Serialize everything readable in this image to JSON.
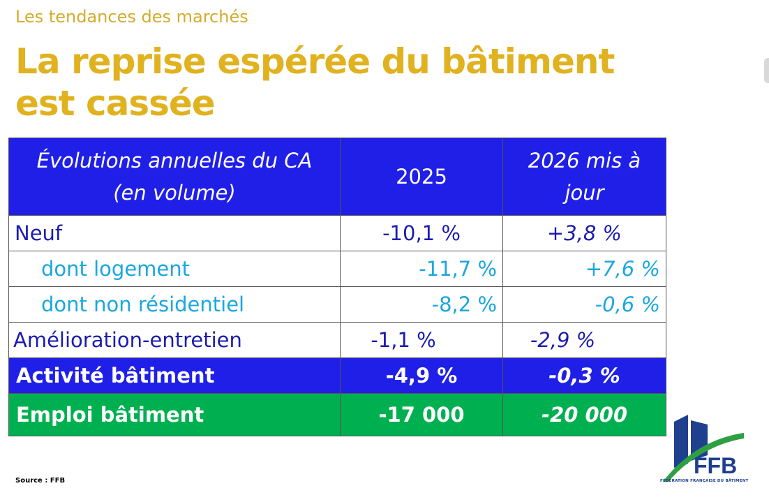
{
  "header": {
    "supertitle": "Les tendances des marchés",
    "title_line1": "La reprise espérée du bâtiment",
    "title_line2": "est cassée"
  },
  "table": {
    "header": {
      "label_line1": "Évolutions annuelles du CA",
      "label_line2": "(en volume)",
      "col_2025": "2025",
      "col_2026_line1": "2026 mis à",
      "col_2026_line2": "jour"
    },
    "rows": [
      {
        "label": "Neuf",
        "v2025": "-10,1 %",
        "v2026": "+3,8 %"
      },
      {
        "label": "dont logement",
        "v2025": "-11,7 %",
        "v2026": "+7,6 %"
      },
      {
        "label": "dont non résidentiel",
        "v2025": "-8,2 %",
        "v2026": "-0,6 %"
      },
      {
        "label": "Amélioration-entretien",
        "v2025": "-1,1 %",
        "v2026": "-2,9 %"
      },
      {
        "label": "Activité bâtiment",
        "v2025": "-4,9 %",
        "v2026": "-0,3 %"
      },
      {
        "label": "Emploi bâtiment",
        "v2025": "-17 000",
        "v2026": "-20 000"
      }
    ]
  },
  "footer": {
    "source": "Source : FFB"
  },
  "logo": {
    "text": "FFB",
    "caption": "FÉDÉRATION FRANÇAISE DU BÂTIMENT",
    "icon": "ffb-building-logo-icon",
    "colors": {
      "blue": "#1f3f8f",
      "green": "#2ea043"
    }
  },
  "colors": {
    "title": "#e0b21f",
    "header_bg": "#1f1fe8",
    "neuf_text": "#1c1caf",
    "sub_text": "#1aa7e0",
    "employment_bg": "#00b050"
  }
}
